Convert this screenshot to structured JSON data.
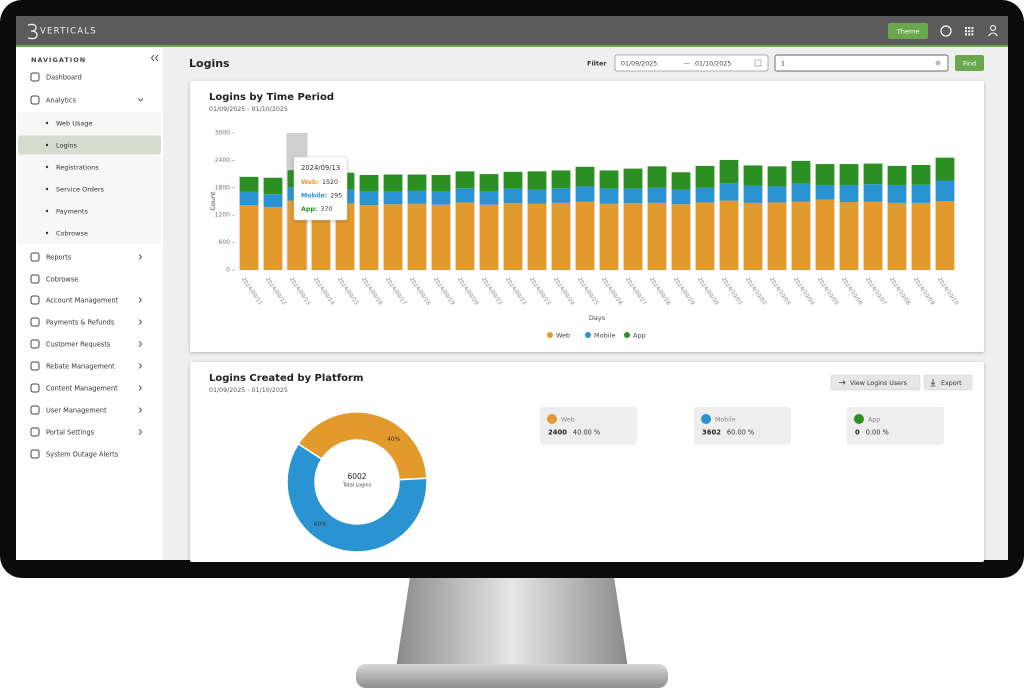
{
  "header": {
    "logo": "VERTICALS",
    "theme": "Theme"
  },
  "nav": {
    "title": "NAVIGATION",
    "items": [
      "Dashboard",
      "Analytics",
      "Reports",
      "Cobrowse",
      "Account Management",
      "Payments & Refunds",
      "Customer Requests",
      "Rebate Management",
      "Content Management",
      "User Management",
      "Portal Settings",
      "System Outage Alerts"
    ],
    "analytics_items": [
      "Web Usage",
      "Logins",
      "Registrations",
      "Service Orders",
      "Payments",
      "Cobrowse"
    ]
  },
  "page": {
    "title": "Logins",
    "filter_label": "Filter",
    "date_from": "01/09/2025",
    "date_to": "01/10/2025",
    "search": "1",
    "find": "Find"
  },
  "chart_data": [
    {
      "type": "bar",
      "stacked": true,
      "title": "Logins by Time Period",
      "subtitle": "01/09/2025 - 01/10/2025",
      "xlabel": "Days",
      "ylabel": "Count",
      "categories": [
        "2024/09/11",
        "2024/09/12",
        "2024/09/13",
        "2024/09/14",
        "2024/09/15",
        "2024/09/16",
        "2024/09/17",
        "2024/09/18",
        "2024/09/19",
        "2024/09/20",
        "2024/09/21",
        "2024/09/22",
        "2024/09/23",
        "2024/09/24",
        "2024/09/25",
        "2024/09/26",
        "2024/09/27",
        "2024/09/28",
        "2024/09/29",
        "2024/09/30",
        "2024/10/01",
        "2024/10/02",
        "2024/10/03",
        "2024/10/04",
        "2024/10/05",
        "2024/10/06",
        "2024/10/07",
        "2024/10/08",
        "2024/10/09",
        "2024/10/10"
      ],
      "series": [
        {
          "name": "Web",
          "color": "#e39a2c",
          "values": [
            1420,
            1380,
            1520,
            1450,
            1460,
            1420,
            1440,
            1450,
            1430,
            1480,
            1430,
            1460,
            1450,
            1470,
            1500,
            1450,
            1460,
            1470,
            1440,
            1480,
            1520,
            1470,
            1480,
            1500,
            1540,
            1490,
            1500,
            1470,
            1470,
            1510
          ]
        },
        {
          "name": "Mobile",
          "color": "#2a94d2",
          "values": [
            290,
            280,
            295,
            300,
            300,
            310,
            290,
            290,
            300,
            310,
            300,
            320,
            310,
            320,
            330,
            330,
            320,
            330,
            320,
            320,
            380,
            380,
            350,
            390,
            320,
            370,
            380,
            390,
            400,
            450
          ]
        },
        {
          "name": "App",
          "color": "#2c8f22",
          "values": [
            330,
            360,
            370,
            370,
            370,
            350,
            360,
            350,
            350,
            370,
            370,
            370,
            400,
            390,
            430,
            400,
            440,
            470,
            380,
            480,
            510,
            440,
            440,
            500,
            460,
            460,
            450,
            420,
            430,
            500
          ]
        }
      ],
      "ylim": [
        0,
        3000
      ],
      "yticks": [
        0,
        600,
        1200,
        1800,
        2400,
        3000
      ],
      "legend": "bottom",
      "tooltip": {
        "lines": [
          "Web:",
          "Mobile:",
          "App:"
        ]
      }
    },
    {
      "type": "pie",
      "donut": true,
      "title": "Logins Created by Platform",
      "subtitle": "01/09/2025 - 01/10/2025",
      "categories": [
        "Web",
        "Mobile",
        "App"
      ],
      "colors": [
        "#e39a2c",
        "#2a94d2",
        "#2c8f22"
      ],
      "values": [
        2400,
        3602,
        0
      ],
      "value_labels": [
        "40%",
        "60%",
        null
      ],
      "total": 6002,
      "total_label": "Total Logins",
      "percent_labels": [
        "40.00 %",
        "60.00 %",
        "0.00 %"
      ]
    }
  ],
  "buttons": {
    "view": "View Logins Users",
    "export": "Export"
  }
}
